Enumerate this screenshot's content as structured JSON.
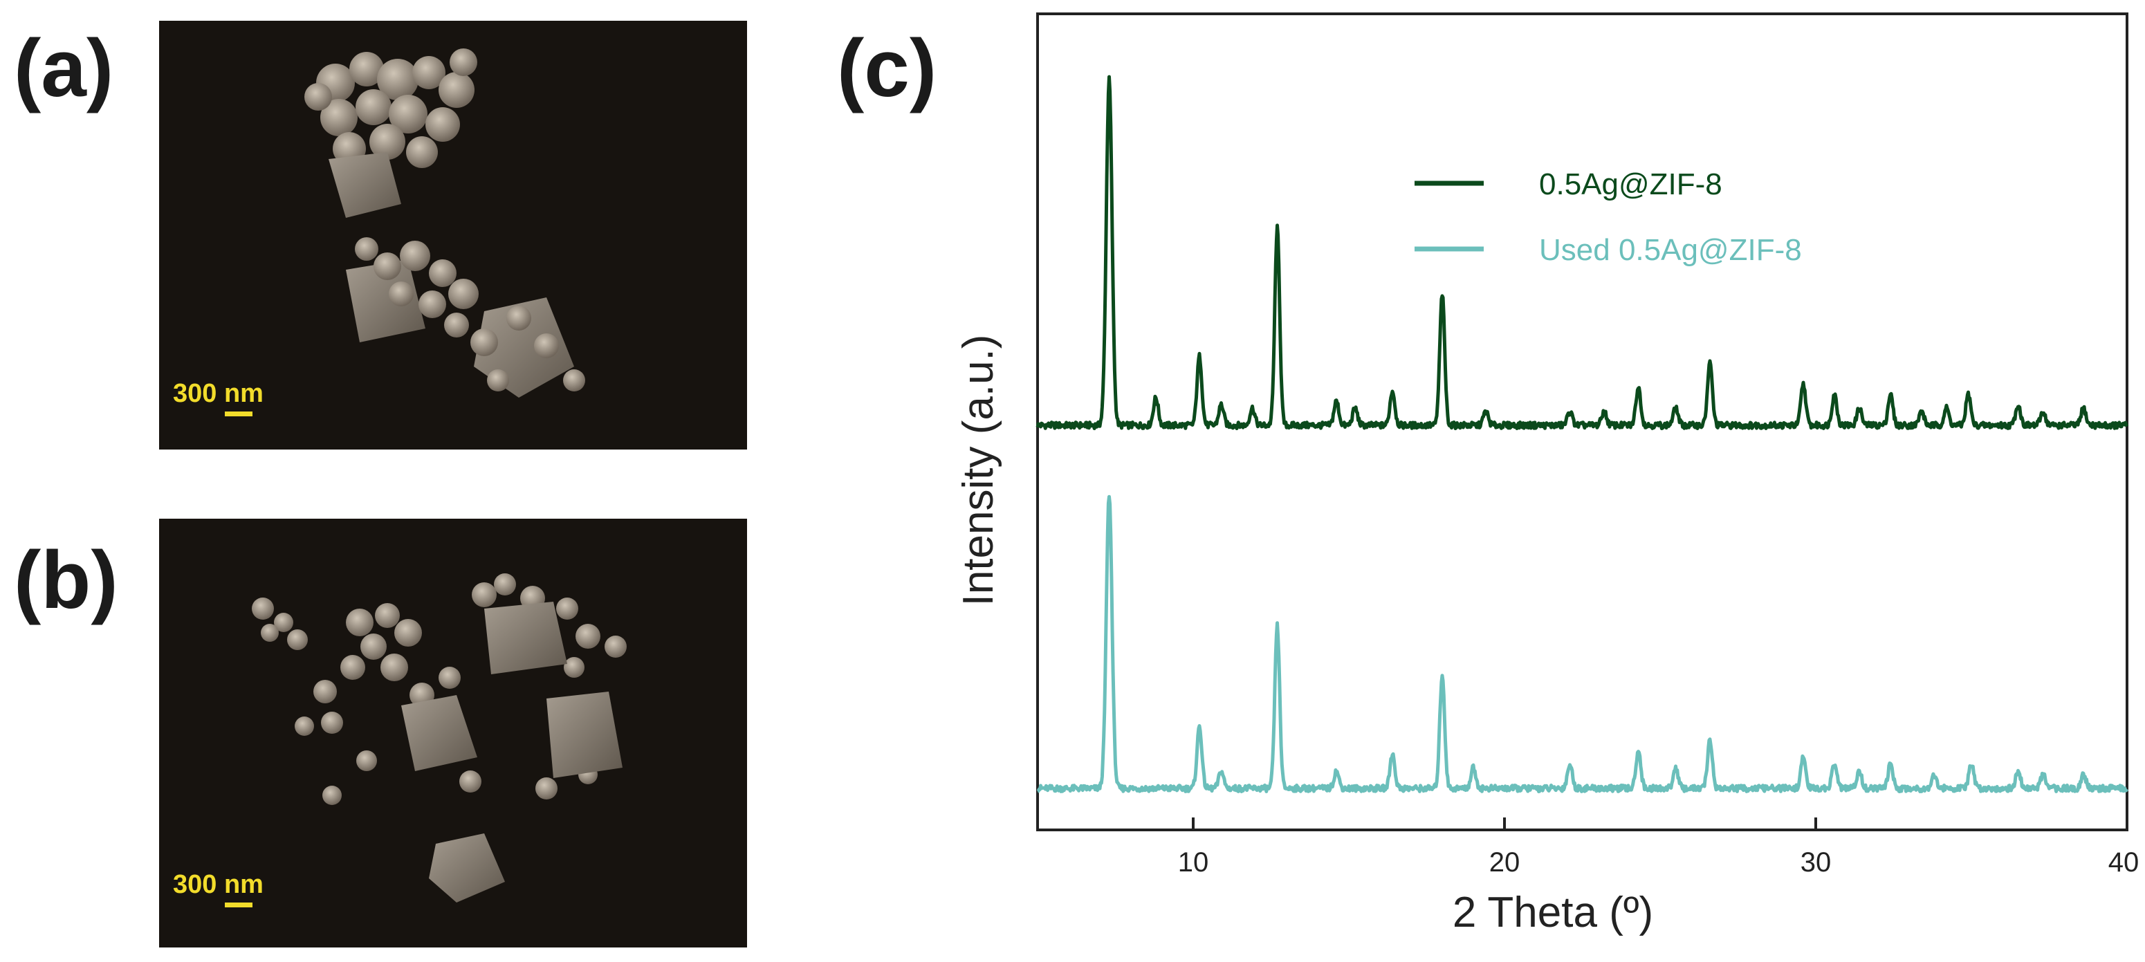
{
  "panels": {
    "a": {
      "label": "(a)",
      "scale_bar": "300 nm"
    },
    "b": {
      "label": "(b)",
      "scale_bar": "300 nm"
    },
    "c": {
      "label": "(c)"
    }
  },
  "chart_data": {
    "type": "line",
    "xlabel": "2 Theta (º)",
    "ylabel": "Intensity (a.u.)",
    "xlim": [
      5,
      40
    ],
    "x_ticks": [
      10,
      20,
      30,
      40
    ],
    "grid": false,
    "legend_position": "top-right",
    "series": [
      {
        "name": "0.5Ag@ZIF-8",
        "color": "#0b4a1c",
        "baseline": 0.0,
        "peaks": [
          [
            7.3,
            1.0
          ],
          [
            8.8,
            0.08
          ],
          [
            10.2,
            0.2
          ],
          [
            10.9,
            0.06
          ],
          [
            11.9,
            0.05
          ],
          [
            12.7,
            0.57
          ],
          [
            14.6,
            0.07
          ],
          [
            15.2,
            0.05
          ],
          [
            16.4,
            0.1
          ],
          [
            18.0,
            0.38
          ],
          [
            19.4,
            0.04
          ],
          [
            22.1,
            0.04
          ],
          [
            23.2,
            0.04
          ],
          [
            24.3,
            0.11
          ],
          [
            25.5,
            0.05
          ],
          [
            26.6,
            0.18
          ],
          [
            29.6,
            0.12
          ],
          [
            30.6,
            0.09
          ],
          [
            31.4,
            0.05
          ],
          [
            32.4,
            0.09
          ],
          [
            33.4,
            0.04
          ],
          [
            34.2,
            0.05
          ],
          [
            34.9,
            0.09
          ],
          [
            36.5,
            0.06
          ],
          [
            37.3,
            0.04
          ],
          [
            38.6,
            0.05
          ]
        ]
      },
      {
        "name": "Used 0.5Ag@ZIF-8",
        "color": "#6bbfbb",
        "baseline": -1.05,
        "peaks": [
          [
            7.3,
            0.85
          ],
          [
            10.2,
            0.18
          ],
          [
            10.9,
            0.05
          ],
          [
            12.7,
            0.47
          ],
          [
            14.6,
            0.05
          ],
          [
            16.4,
            0.1
          ],
          [
            18.0,
            0.33
          ],
          [
            19.0,
            0.06
          ],
          [
            22.1,
            0.07
          ],
          [
            24.3,
            0.11
          ],
          [
            25.5,
            0.06
          ],
          [
            26.6,
            0.14
          ],
          [
            29.6,
            0.09
          ],
          [
            30.6,
            0.07
          ],
          [
            31.4,
            0.05
          ],
          [
            32.4,
            0.07
          ],
          [
            33.8,
            0.04
          ],
          [
            35.0,
            0.07
          ],
          [
            36.5,
            0.05
          ],
          [
            37.3,
            0.04
          ],
          [
            38.6,
            0.04
          ]
        ]
      }
    ]
  }
}
